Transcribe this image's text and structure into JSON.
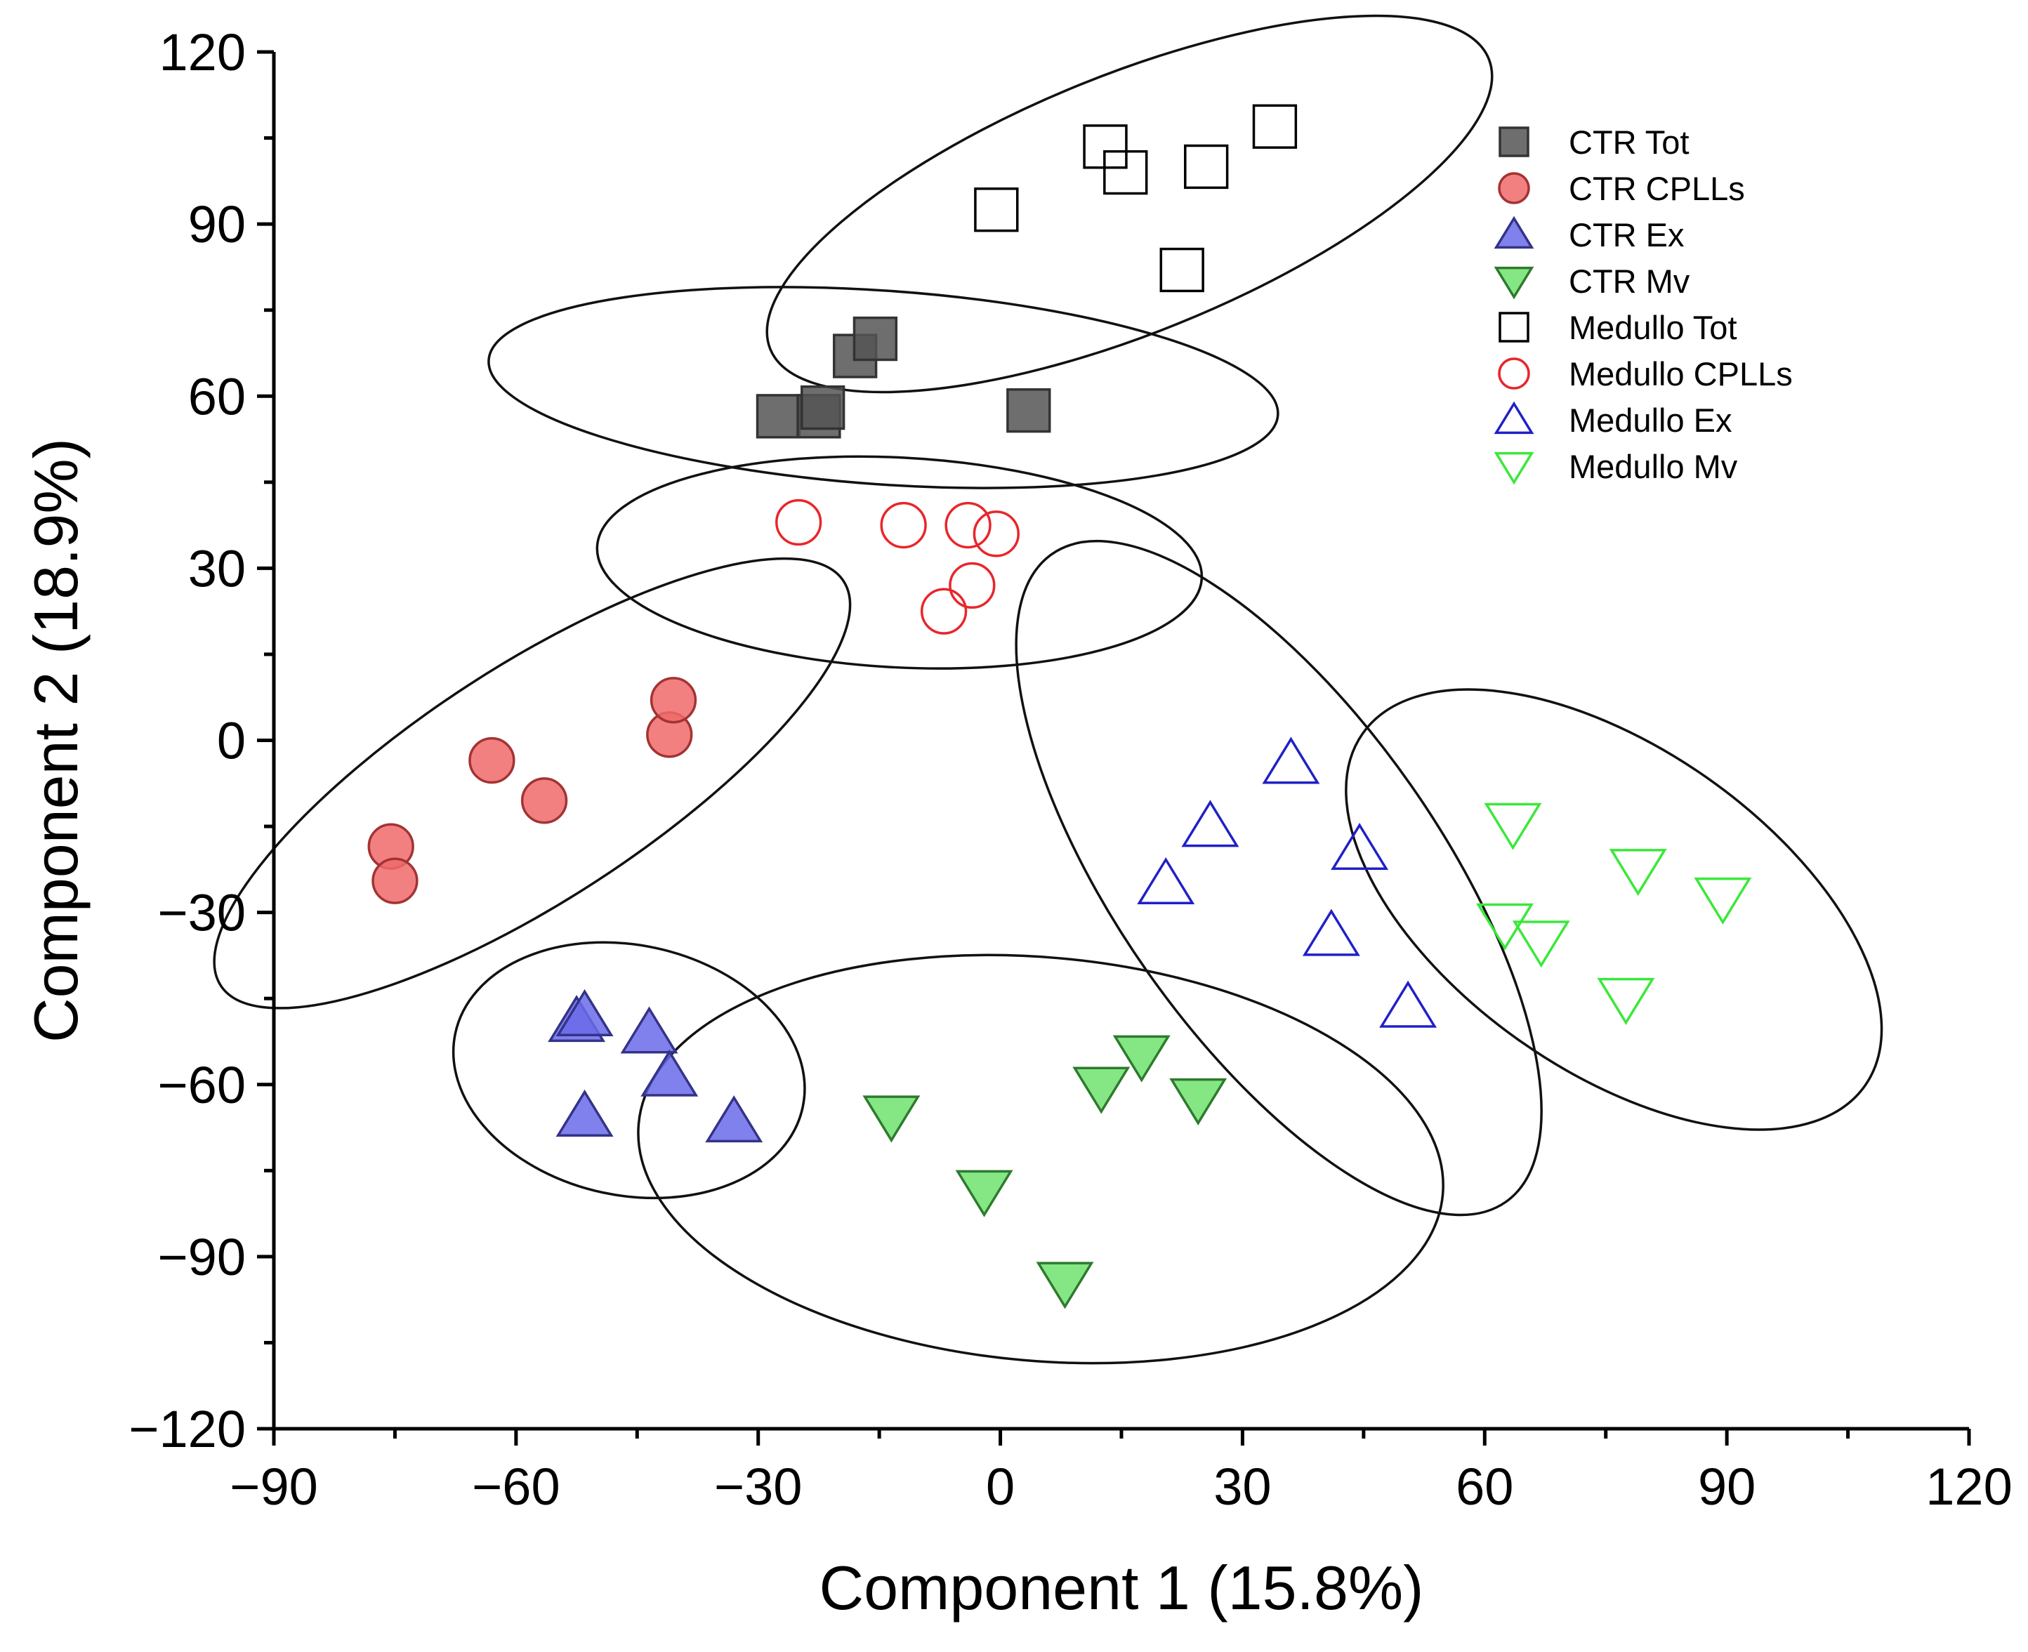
{
  "chart_data": {
    "type": "scatter",
    "xlabel": "Component 1 (15.8%)",
    "ylabel": "Component 2 (18.9%)",
    "xlim": [
      -90,
      120
    ],
    "ylim": [
      -120,
      120
    ],
    "xticks": [
      -90,
      -60,
      -30,
      0,
      30,
      60,
      90,
      120
    ],
    "yticks": [
      -120,
      -90,
      -60,
      -30,
      0,
      30,
      60,
      90,
      120
    ],
    "xtick_labels": [
      "−90",
      "−60",
      "−30",
      "0",
      "30",
      "60",
      "90",
      "120"
    ],
    "ytick_labels": [
      "−120",
      "−90",
      "−60",
      "−30",
      "0",
      "30",
      "60",
      "90",
      "120"
    ],
    "grid": false,
    "legend_position": "top-right",
    "series": [
      {
        "name": "CTR Tot",
        "marker": "square",
        "filled": true,
        "color": "#555555",
        "stroke": "#333333",
        "points": [
          [
            -27.5,
            56.5
          ],
          [
            -22.5,
            56.5
          ],
          [
            -22,
            58
          ],
          [
            -18,
            67
          ],
          [
            -15.5,
            70
          ],
          [
            3.5,
            57.5
          ]
        ]
      },
      {
        "name": "CTR CPLLs",
        "marker": "circle",
        "filled": true,
        "color": "#f06a6a",
        "stroke": "#a33333",
        "points": [
          [
            -75.5,
            -18.5
          ],
          [
            -75,
            -24.5
          ],
          [
            -63,
            -3.5
          ],
          [
            -56.5,
            -10.5
          ],
          [
            -41,
            1
          ],
          [
            -40.5,
            7
          ]
        ]
      },
      {
        "name": "CTR Ex",
        "marker": "triangle-up",
        "filled": true,
        "color": "#6b6bea",
        "stroke": "#333388",
        "points": [
          [
            -52.5,
            -49
          ],
          [
            -51.5,
            -48
          ],
          [
            -51.5,
            -65.5
          ],
          [
            -43.5,
            -51
          ],
          [
            -41,
            -58.5
          ],
          [
            -33,
            -66.5
          ]
        ]
      },
      {
        "name": "CTR Mv",
        "marker": "triangle-down",
        "filled": true,
        "color": "#6ee36e",
        "stroke": "#2e7a2e",
        "points": [
          [
            -13.5,
            -65.5
          ],
          [
            -2,
            -78.5
          ],
          [
            8,
            -94.5
          ],
          [
            12.5,
            -60.5
          ],
          [
            17.5,
            -55
          ],
          [
            24.5,
            -62.5
          ]
        ]
      },
      {
        "name": "Medullo Tot",
        "marker": "square",
        "filled": false,
        "color": "#000000",
        "points": [
          [
            -0.5,
            92.5
          ],
          [
            13,
            103.5
          ],
          [
            15.5,
            99
          ],
          [
            22.5,
            82
          ],
          [
            25.5,
            100
          ],
          [
            34,
            107
          ]
        ]
      },
      {
        "name": "Medullo CPLLs",
        "marker": "circle",
        "filled": false,
        "color": "#e8262b",
        "points": [
          [
            -25,
            38
          ],
          [
            -12,
            37.5
          ],
          [
            -4,
            37.5
          ],
          [
            -3.5,
            27
          ],
          [
            -7,
            22.5
          ],
          [
            -0.5,
            36
          ]
        ]
      },
      {
        "name": "Medullo Ex",
        "marker": "triangle-up",
        "filled": false,
        "color": "#2020c8",
        "points": [
          [
            20.5,
            -25
          ],
          [
            26,
            -15
          ],
          [
            36,
            -4
          ],
          [
            44.5,
            -19
          ],
          [
            41,
            -34
          ],
          [
            50.5,
            -46.5
          ]
        ]
      },
      {
        "name": "Medullo Mv",
        "marker": "triangle-down",
        "filled": false,
        "color": "#3ae83a",
        "points": [
          [
            63.5,
            -14.5
          ],
          [
            79,
            -22.5
          ],
          [
            89.5,
            -27.5
          ],
          [
            62.5,
            -32
          ],
          [
            67,
            -35
          ],
          [
            77.5,
            -45
          ]
        ]
      }
    ],
    "ellipses": [
      {
        "group": "Medullo Tot",
        "cx": 16,
        "cy": 93.5,
        "rx": 48,
        "ry": 16,
        "angle": -22
      },
      {
        "group": "CTR Tot",
        "cx": -14.5,
        "cy": 61.5,
        "rx": 49,
        "ry": 12,
        "angle": 4
      },
      {
        "group": "Medullo CPLLs",
        "cx": -12.5,
        "cy": 31,
        "rx": 37.5,
        "ry": 13,
        "angle": 3
      },
      {
        "group": "CTR CPLLs",
        "cx": -58,
        "cy": -7.5,
        "rx": 46,
        "ry": 14.5,
        "angle": -33
      },
      {
        "group": "CTR Ex",
        "cx": -46,
        "cy": -57.5,
        "rx": 22,
        "ry": 15.5,
        "angle": 12
      },
      {
        "group": "CTR Mv",
        "cx": 5,
        "cy": -73,
        "rx": 50,
        "ry": 25,
        "angle": 5
      },
      {
        "group": "Medullo Ex",
        "cx": 34.5,
        "cy": -24,
        "rx": 49,
        "ry": 20,
        "angle": 55
      },
      {
        "group": "Medullo Mv",
        "cx": 76,
        "cy": -29.5,
        "rx": 38,
        "ry": 20,
        "angle": 35
      }
    ]
  }
}
